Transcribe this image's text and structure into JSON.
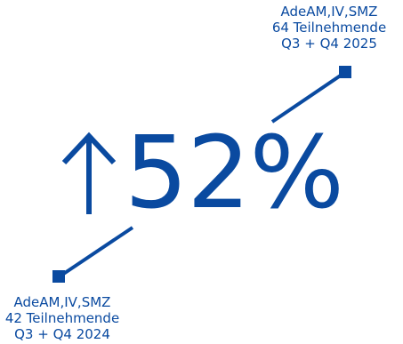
{
  "colors": {
    "accent": "#0a4aa0",
    "background": "#ffffff"
  },
  "icons": {
    "trend_arrow": "up-arrow-icon",
    "end_markers": "square-marker"
  },
  "top_label": {
    "line1": "AdeAM,IV,SMZ",
    "line2": "64 Teilnehmende",
    "line3": "Q3 + Q4 2025"
  },
  "bottom_label": {
    "line1": "AdeAM,IV,SMZ",
    "line2": "42 Teilnehmende",
    "line3": "Q3 + Q4 2024"
  },
  "headline": {
    "value": "52%"
  }
}
